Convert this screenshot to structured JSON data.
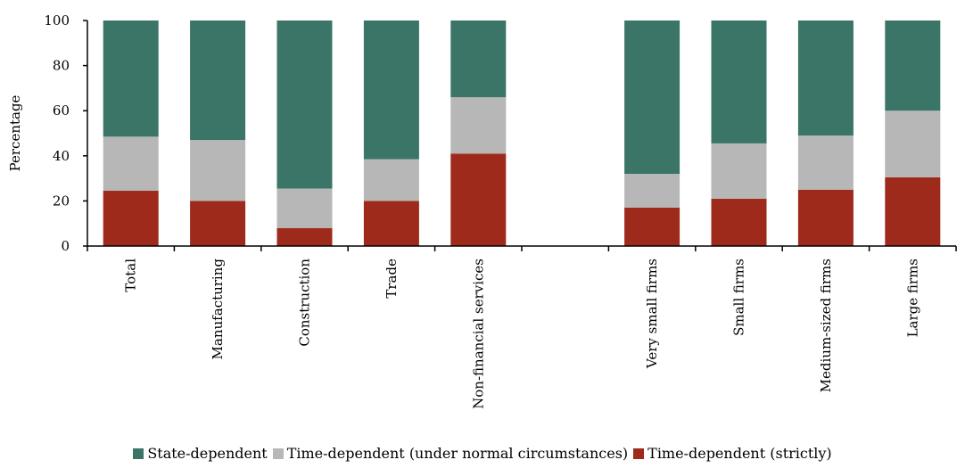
{
  "chart_data": {
    "type": "bar",
    "stacked": true,
    "title": "",
    "xlabel": "",
    "ylabel": "Percentage",
    "ylim": [
      0,
      100
    ],
    "yticks": [
      0,
      20,
      40,
      60,
      80,
      100
    ],
    "grid": false,
    "legend_position": "bottom",
    "categories": [
      "Total",
      "Manufacturing",
      "Construction",
      "Trade",
      "Non-financial services",
      "",
      "Very small firms",
      "Small firms",
      "Medium-sized firms",
      "Large firms"
    ],
    "series": [
      {
        "name": "Time-dependent (strictly)",
        "color": "#9e2a1c",
        "values": [
          24.5,
          20,
          8,
          20,
          41,
          null,
          17,
          21,
          25,
          30.5
        ]
      },
      {
        "name": "Time-dependent (under normal circumstances)",
        "color": "#b7b7b7",
        "values": [
          24,
          27,
          17.5,
          18.5,
          25,
          null,
          15,
          24.5,
          24,
          29.5
        ]
      },
      {
        "name": "State-dependent",
        "color": "#3a7568",
        "values": [
          51.5,
          53,
          74.5,
          61.5,
          34,
          null,
          68,
          54.5,
          51,
          40
        ]
      }
    ],
    "legend_order": [
      "State-dependent",
      "Time-dependent (under normal circumstances)",
      "Time-dependent (strictly)"
    ]
  }
}
